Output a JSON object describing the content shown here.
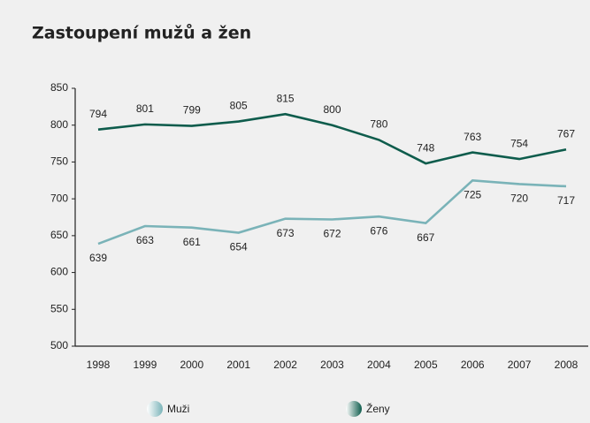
{
  "chart_data": {
    "type": "line",
    "title": "Zastoupení mužů a žen",
    "categories": [
      "1998",
      "1999",
      "2000",
      "2001",
      "2002",
      "2003",
      "2004",
      "2005",
      "2006",
      "2007",
      "2008"
    ],
    "series": [
      {
        "name": "Muži",
        "color": "#7ab3b8",
        "values": [
          639,
          663,
          661,
          654,
          673,
          672,
          676,
          667,
          725,
          720,
          717
        ]
      },
      {
        "name": "Ženy",
        "color": "#0e5c4c",
        "values": [
          794,
          801,
          799,
          805,
          815,
          800,
          780,
          748,
          763,
          754,
          767
        ]
      }
    ],
    "ylim": [
      500,
      850
    ],
    "yticks": [
      500,
      550,
      600,
      650,
      700,
      750,
      800,
      850
    ],
    "grid": false
  }
}
